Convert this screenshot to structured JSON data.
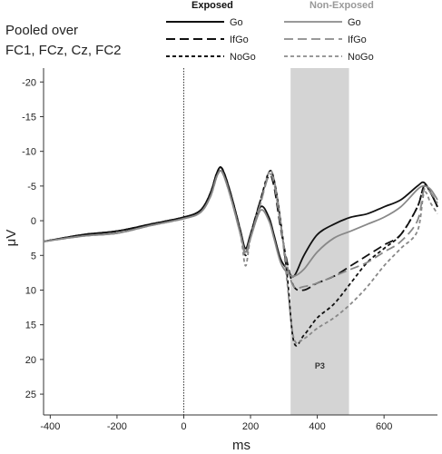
{
  "chart_data": {
    "type": "line",
    "title_lines": [
      "Pooled over",
      "FC1, FCz, Cz, FC2"
    ],
    "xlabel": "ms",
    "ylabel": "μV",
    "xlim": [
      -420,
      760
    ],
    "ylim": [
      -22,
      28
    ],
    "y_inverted": true,
    "x_ticks": [
      -400,
      -200,
      0,
      200,
      400,
      600
    ],
    "y_ticks": [
      -20,
      -15,
      -10,
      -5,
      0,
      5,
      10,
      15,
      20,
      25
    ],
    "x_tick_labels": [
      "-400",
      "-200",
      "0",
      "200",
      "400",
      "600"
    ],
    "y_tick_labels": [
      "-20",
      "-15",
      "-10",
      "-5",
      "0",
      "5",
      "10",
      "15",
      "20",
      "25"
    ],
    "vline_x": 0,
    "shaded_region": {
      "x0": 320,
      "x1": 495,
      "label": "P3",
      "color": "#d4d4d4"
    },
    "legend_groups": [
      {
        "title": "Exposed",
        "color": "#111111",
        "entries": [
          "Go",
          "IfGo",
          "NoGo"
        ]
      },
      {
        "title": "Non-Exposed",
        "color": "#999999",
        "entries": [
          "Go",
          "IfGo",
          "NoGo"
        ]
      }
    ],
    "colors": {
      "exposed": "#111111",
      "nonexposed": "#888888",
      "shade": "#d4d4d4"
    },
    "series": [
      {
        "group": "Exposed",
        "condition": "Go",
        "style": "solid",
        "color": "#111111",
        "x": [
          -420,
          -300,
          -200,
          -100,
          0,
          50,
          80,
          100,
          115,
          140,
          170,
          185,
          200,
          230,
          255,
          270,
          290,
          310,
          330,
          360,
          400,
          450,
          500,
          550,
          600,
          650,
          700,
          720,
          740,
          760
        ],
        "y": [
          3,
          2,
          1.5,
          0.5,
          -0.5,
          -1.5,
          -4,
          -7,
          -7.5,
          -4,
          1.5,
          4,
          2,
          -2,
          -0.5,
          2,
          5.5,
          7,
          8,
          5,
          2,
          0.5,
          -0.5,
          -1,
          -2,
          -3,
          -5,
          -5.5,
          -4,
          -2
        ]
      },
      {
        "group": "Exposed",
        "condition": "IfGo",
        "style": "long-dash",
        "color": "#111111",
        "x": [
          -420,
          -300,
          -200,
          -100,
          0,
          50,
          80,
          100,
          115,
          140,
          170,
          185,
          200,
          230,
          255,
          270,
          290,
          310,
          330,
          360,
          400,
          450,
          500,
          550,
          600,
          650,
          700,
          720,
          740,
          760
        ],
        "y": [
          3,
          2,
          1.5,
          0.5,
          -0.5,
          -1.5,
          -4,
          -7,
          -7.5,
          -4,
          1.5,
          4.5,
          2,
          -3,
          -6.5,
          -5,
          1,
          6,
          9.5,
          10,
          9,
          8,
          6.5,
          5,
          3.5,
          2,
          -2,
          -5,
          -4,
          -2
        ]
      },
      {
        "group": "Exposed",
        "condition": "NoGo",
        "style": "short-dash",
        "color": "#111111",
        "x": [
          -420,
          -300,
          -200,
          -100,
          0,
          50,
          80,
          100,
          115,
          140,
          170,
          185,
          200,
          230,
          255,
          270,
          290,
          310,
          330,
          360,
          400,
          450,
          500,
          550,
          600,
          650,
          700,
          720,
          740,
          760
        ],
        "y": [
          3,
          2,
          1.5,
          0.5,
          -0.5,
          -1.5,
          -4,
          -7,
          -7.5,
          -4,
          1.5,
          5,
          2,
          -3,
          -7,
          -6,
          0,
          8,
          17.5,
          16.5,
          14,
          12,
          9,
          6,
          4,
          2,
          -2,
          -5,
          -4,
          -2
        ]
      },
      {
        "group": "Non-Exposed",
        "condition": "Go",
        "style": "solid",
        "color": "#888888",
        "x": [
          -420,
          -300,
          -200,
          -100,
          0,
          50,
          80,
          100,
          115,
          140,
          170,
          185,
          200,
          230,
          255,
          270,
          290,
          310,
          330,
          360,
          400,
          450,
          500,
          550,
          600,
          650,
          700,
          720,
          740,
          760
        ],
        "y": [
          3,
          2.2,
          1.8,
          0.7,
          -0.3,
          -1.2,
          -3.5,
          -6.5,
          -7,
          -3.5,
          2,
          4.5,
          2.5,
          -1.5,
          0,
          2.5,
          6,
          7.5,
          8,
          7,
          4.5,
          2.5,
          1.5,
          0.5,
          -0.5,
          -2,
          -4.5,
          -5,
          -4.5,
          -3
        ]
      },
      {
        "group": "Non-Exposed",
        "condition": "IfGo",
        "style": "long-dash",
        "color": "#888888",
        "x": [
          -420,
          -300,
          -200,
          -100,
          0,
          50,
          80,
          100,
          115,
          140,
          170,
          185,
          200,
          230,
          255,
          270,
          290,
          310,
          330,
          360,
          400,
          450,
          500,
          550,
          600,
          650,
          700,
          720,
          740,
          760
        ],
        "y": [
          3,
          2.2,
          1.8,
          0.7,
          -0.3,
          -1.2,
          -3.5,
          -6.5,
          -7,
          -3.5,
          2,
          5,
          2.5,
          -2.5,
          -6.5,
          -5.5,
          0.5,
          6.5,
          9.5,
          9.5,
          9,
          8,
          7,
          6,
          4.5,
          3,
          0,
          -4.5,
          -4,
          -2.5
        ]
      },
      {
        "group": "Non-Exposed",
        "condition": "NoGo",
        "style": "short-dash",
        "color": "#888888",
        "x": [
          -420,
          -300,
          -200,
          -100,
          0,
          50,
          80,
          100,
          115,
          140,
          170,
          185,
          200,
          230,
          255,
          270,
          290,
          310,
          330,
          360,
          400,
          450,
          500,
          550,
          600,
          650,
          700,
          720,
          740,
          760
        ],
        "y": [
          3,
          2.2,
          1.8,
          0.7,
          -0.3,
          -1.2,
          -3.5,
          -6.5,
          -7,
          -3.5,
          2,
          6.5,
          2.5,
          -2.5,
          -7,
          -6,
          0,
          9,
          17,
          17,
          15.5,
          14,
          12,
          9.5,
          6.5,
          4,
          1.5,
          -4,
          -2.5,
          -1
        ]
      }
    ]
  }
}
